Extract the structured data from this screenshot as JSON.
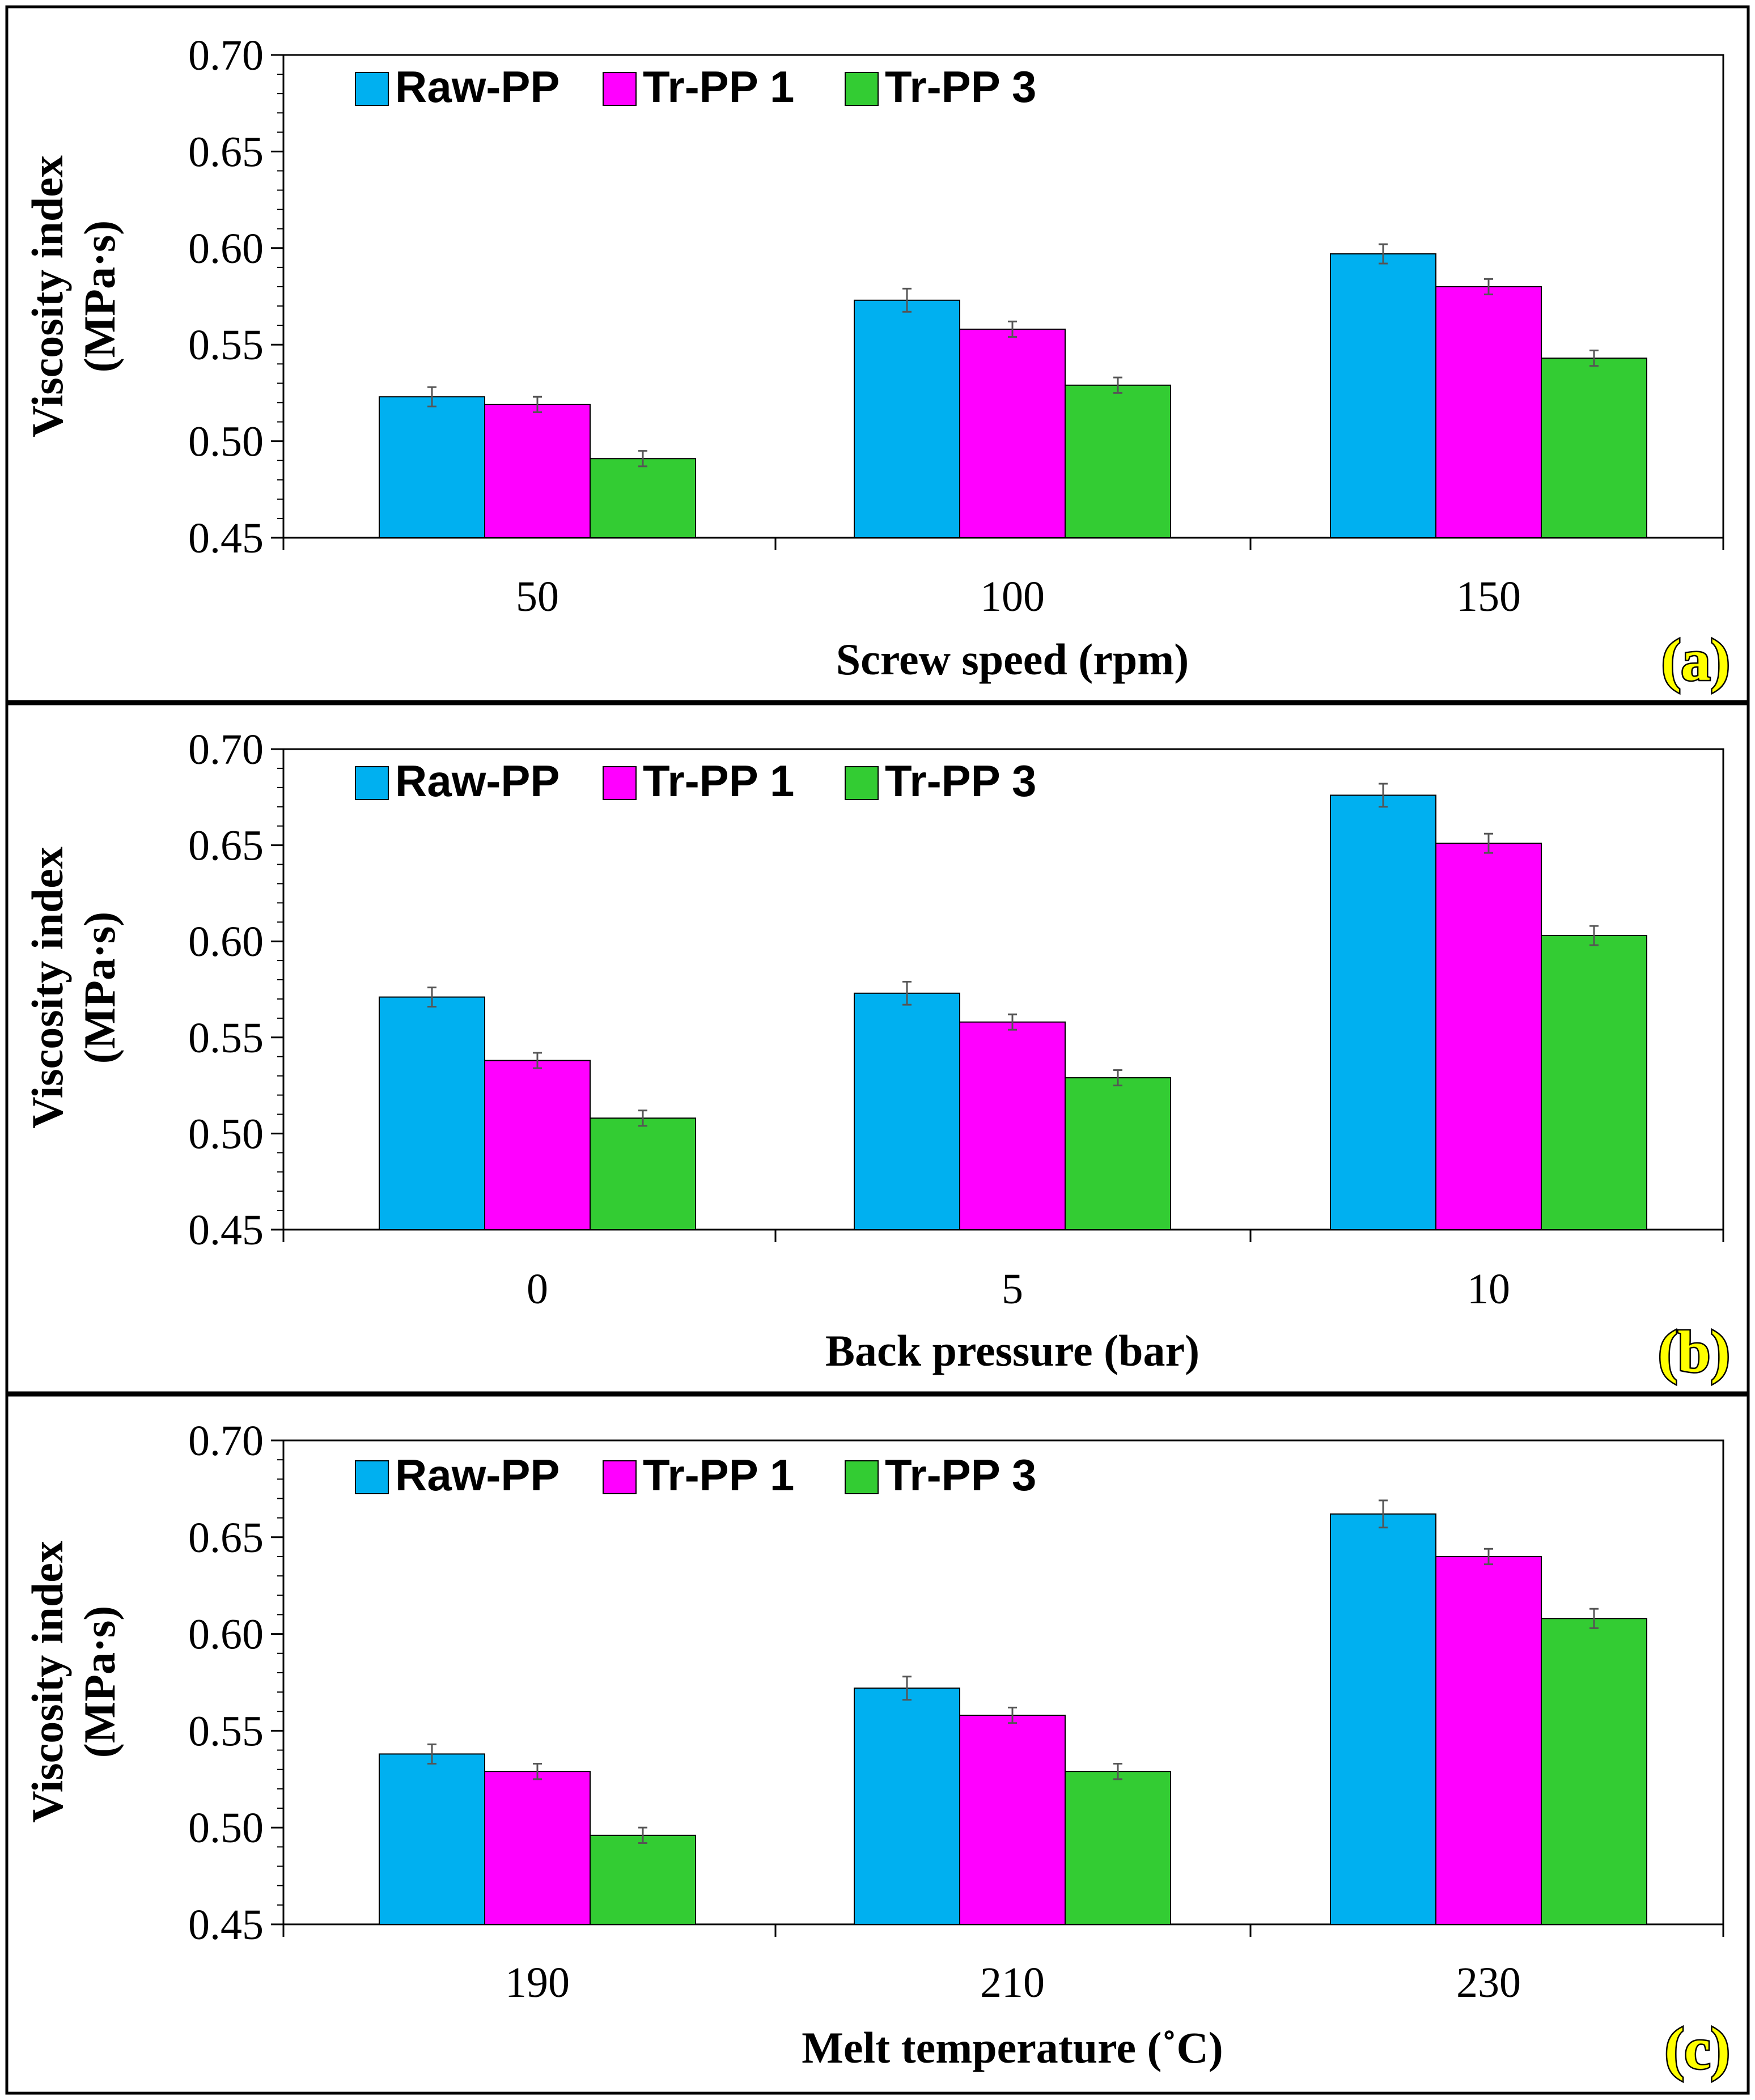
{
  "colors": {
    "Raw-PP": "#00b0f0",
    "Tr-PP 1": "#ff00ff",
    "Tr-PP 3": "#33cc33"
  },
  "chart_data": [
    {
      "type": "bar",
      "panel_label": "(a)",
      "xlabel": "Screw speed (rpm)",
      "ylabel": [
        "Viscosity index",
        "(MPa·s)"
      ],
      "ylim": [
        0.45,
        0.7
      ],
      "yticks": [
        "0.45",
        "0.50",
        "0.55",
        "0.60",
        "0.65",
        "0.70"
      ],
      "categories": [
        "50",
        "100",
        "150"
      ],
      "legend_position": "top-left",
      "series": [
        {
          "name": "Raw-PP",
          "values": [
            0.523,
            0.573,
            0.597
          ],
          "errors": [
            0.005,
            0.006,
            0.005
          ]
        },
        {
          "name": "Tr-PP 1",
          "values": [
            0.519,
            0.558,
            0.58
          ],
          "errors": [
            0.004,
            0.004,
            0.004
          ]
        },
        {
          "name": "Tr-PP 3",
          "values": [
            0.491,
            0.529,
            0.543
          ],
          "errors": [
            0.004,
            0.004,
            0.004
          ]
        }
      ]
    },
    {
      "type": "bar",
      "panel_label": "(b)",
      "xlabel": "Back pressure (bar)",
      "ylabel": [
        "Viscosity index",
        "(MPa·s)"
      ],
      "ylim": [
        0.45,
        0.7
      ],
      "yticks": [
        "0.45",
        "0.50",
        "0.55",
        "0.60",
        "0.65",
        "0.70"
      ],
      "categories": [
        "0",
        "5",
        "10"
      ],
      "legend_position": "top-left",
      "series": [
        {
          "name": "Raw-PP",
          "values": [
            0.571,
            0.573,
            0.676
          ],
          "errors": [
            0.005,
            0.006,
            0.006
          ]
        },
        {
          "name": "Tr-PP 1",
          "values": [
            0.538,
            0.558,
            0.651
          ],
          "errors": [
            0.004,
            0.004,
            0.005
          ]
        },
        {
          "name": "Tr-PP 3",
          "values": [
            0.508,
            0.529,
            0.603
          ],
          "errors": [
            0.004,
            0.004,
            0.005
          ]
        }
      ]
    },
    {
      "type": "bar",
      "panel_label": "(c)",
      "xlabel": "Melt temperature (˚C)",
      "ylabel": [
        "Viscosity index",
        "(MPa·s)"
      ],
      "ylim": [
        0.45,
        0.7
      ],
      "yticks": [
        "0.45",
        "0.50",
        "0.55",
        "0.60",
        "0.65",
        "0.70"
      ],
      "categories": [
        "190",
        "210",
        "230"
      ],
      "legend_position": "top-left",
      "series": [
        {
          "name": "Raw-PP",
          "values": [
            0.538,
            0.572,
            0.662
          ],
          "errors": [
            0.005,
            0.006,
            0.007
          ]
        },
        {
          "name": "Tr-PP 1",
          "values": [
            0.529,
            0.558,
            0.64
          ],
          "errors": [
            0.004,
            0.004,
            0.004
          ]
        },
        {
          "name": "Tr-PP 3",
          "values": [
            0.496,
            0.529,
            0.608
          ],
          "errors": [
            0.004,
            0.004,
            0.005
          ]
        }
      ]
    }
  ]
}
